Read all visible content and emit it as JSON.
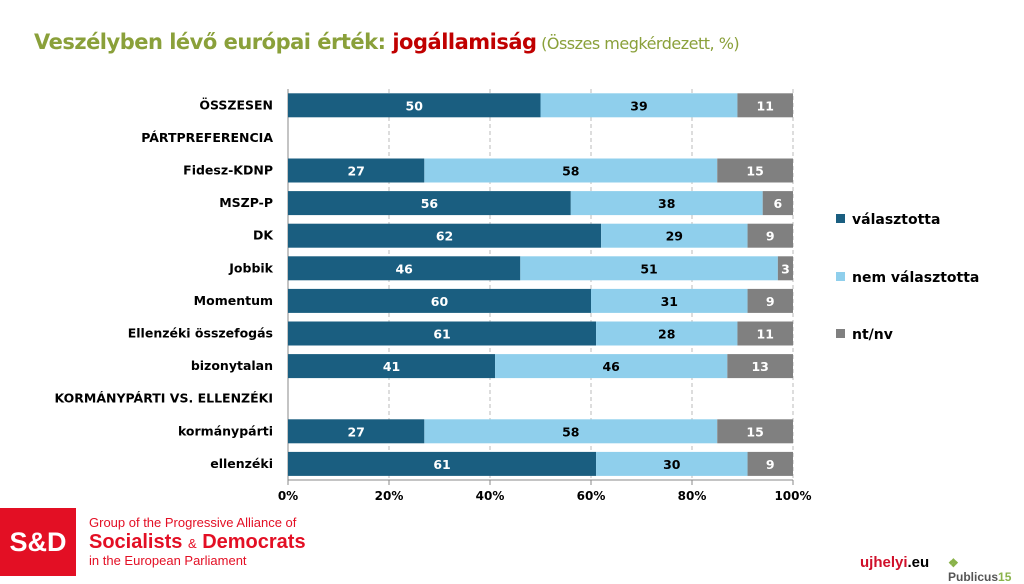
{
  "title": {
    "part1": "Veszélyben lévő európai érték: ",
    "part2": "jogállamiság",
    "part3": " (Összes megkérdezett, %)"
  },
  "colors": {
    "valasztotta": "#1a5e80",
    "nem_valasztotta": "#8fcfec",
    "nt_nv": "#808080",
    "title_green": "#8aa03a",
    "title_red": "#c00000"
  },
  "chart_data": {
    "type": "bar",
    "orientation": "horizontal",
    "stacked": true,
    "categories": [
      "ÖSSZESEN",
      "PÁRTPREFERENCIA",
      "Fidesz-KDNP",
      "MSZP-P",
      "DK",
      "Jobbik",
      "Momentum",
      "Ellenzéki összefogás",
      "bizonytalan",
      "KORMÁNYPÁRTI VS. ELLENZÉKI",
      "kormánypárti",
      "ellenzéki"
    ],
    "series": [
      {
        "name": "választotta",
        "values": [
          50,
          null,
          27,
          56,
          62,
          46,
          60,
          61,
          41,
          null,
          27,
          61
        ]
      },
      {
        "name": "nem választotta",
        "values": [
          39,
          null,
          58,
          38,
          29,
          51,
          31,
          28,
          46,
          null,
          58,
          30
        ]
      },
      {
        "name": "nt/nv",
        "values": [
          11,
          null,
          15,
          6,
          9,
          3,
          9,
          11,
          13,
          null,
          15,
          9
        ]
      }
    ],
    "xlim": [
      0,
      100
    ],
    "xticks": [
      "0%",
      "20%",
      "40%",
      "60%",
      "80%",
      "100%"
    ],
    "grid": "vertical dashed",
    "legend": "right"
  },
  "footer": {
    "logo": "S&D",
    "line1": "Group of the Progressive Alliance of",
    "line2a": "Socialists",
    "line2amp": "&",
    "line2b": "Democrats",
    "line3": "in the European Parliament",
    "ujhelyi": "ujhelyi",
    "ujhelyi_tld": ".eu",
    "publicus": "Publicus",
    "publicus_num": "15"
  }
}
